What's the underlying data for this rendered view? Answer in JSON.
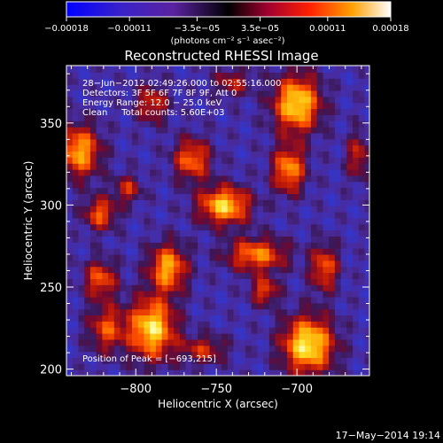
{
  "chart_data": {
    "type": "heatmap",
    "title": "Reconstructed RHESSI Image",
    "xlabel": "Heliocentric X (arcsec)",
    "ylabel": "Heliocentric Y (arcsec)",
    "xlim": [
      -843,
      -655
    ],
    "ylim": [
      196,
      385
    ],
    "x_ticks": [
      -800,
      -750,
      -700
    ],
    "x_tick_labels": [
      "−800",
      "−750",
      "−700"
    ],
    "y_ticks": [
      200,
      250,
      300,
      350
    ],
    "y_tick_labels": [
      "200",
      "250",
      "300",
      "350"
    ],
    "grid": false,
    "annotations": [
      "28−Jun−2012 02:49:26.000 to 02:55:16.000",
      "Detectors: 3F 5F 6F 7F 8F 9F, Att 0",
      "Energy Range: 12.0 − 25.0 keV",
      "Clean     Total counts: 5.60E+03"
    ],
    "peak_label": "Position of Peak = [−693,215]",
    "peak_position": [
      -693,
      215
    ],
    "colorbar": {
      "min": -0.00018,
      "max": 0.00018,
      "tick_values": [
        -0.00018,
        -0.00011,
        -3.5e-05,
        3.5e-05,
        0.00011,
        0.00018
      ],
      "tick_labels": [
        "−0.00018",
        "−0.00011",
        "−3.5e−05",
        "3.5e−05",
        "0.00011",
        "0.00018"
      ],
      "unit_label": "(photons cm⁻² s⁻¹ asec⁻²)"
    },
    "blobs": [
      {
        "x": -693,
        "y": 215,
        "sx": 11,
        "sy": 12,
        "amp": 1.0
      },
      {
        "x": -790,
        "y": 225,
        "sx": 10,
        "sy": 13,
        "amp": 0.95
      },
      {
        "x": -780,
        "y": 262,
        "sx": 8,
        "sy": 10,
        "amp": 0.8
      },
      {
        "x": -745,
        "y": 300,
        "sx": 11,
        "sy": 8,
        "amp": 0.9
      },
      {
        "x": -700,
        "y": 362,
        "sx": 10,
        "sy": 12,
        "amp": 0.95
      },
      {
        "x": -705,
        "y": 322,
        "sx": 7,
        "sy": 10,
        "amp": 0.75
      },
      {
        "x": -725,
        "y": 270,
        "sx": 13,
        "sy": 7,
        "amp": 0.7
      },
      {
        "x": -765,
        "y": 328,
        "sx": 8,
        "sy": 9,
        "amp": 0.65
      },
      {
        "x": -835,
        "y": 333,
        "sx": 9,
        "sy": 11,
        "amp": 0.8
      },
      {
        "x": -822,
        "y": 295,
        "sx": 7,
        "sy": 7,
        "amp": 0.6
      },
      {
        "x": -822,
        "y": 255,
        "sx": 7,
        "sy": 8,
        "amp": 0.6
      },
      {
        "x": -818,
        "y": 225,
        "sx": 8,
        "sy": 10,
        "amp": 0.55
      },
      {
        "x": -790,
        "y": 362,
        "sx": 7,
        "sy": 8,
        "amp": 0.5
      },
      {
        "x": -683,
        "y": 262,
        "sx": 6,
        "sy": 10,
        "amp": 0.6
      },
      {
        "x": -758,
        "y": 212,
        "sx": 10,
        "sy": 6,
        "amp": 0.45
      },
      {
        "x": -720,
        "y": 248,
        "sx": 6,
        "sy": 6,
        "amp": 0.55
      },
      {
        "x": -662,
        "y": 330,
        "sx": 5,
        "sy": 10,
        "amp": 0.45
      },
      {
        "x": -740,
        "y": 375,
        "sx": 8,
        "sy": 6,
        "amp": 0.4
      },
      {
        "x": -805,
        "y": 310,
        "sx": 6,
        "sy": 6,
        "amp": 0.45
      }
    ],
    "colors": {
      "background": "#000000",
      "map_floor": "#4a2a9a",
      "map_dark": "#2a3ae0"
    }
  },
  "footer_date": "17−May−2014 19:14"
}
